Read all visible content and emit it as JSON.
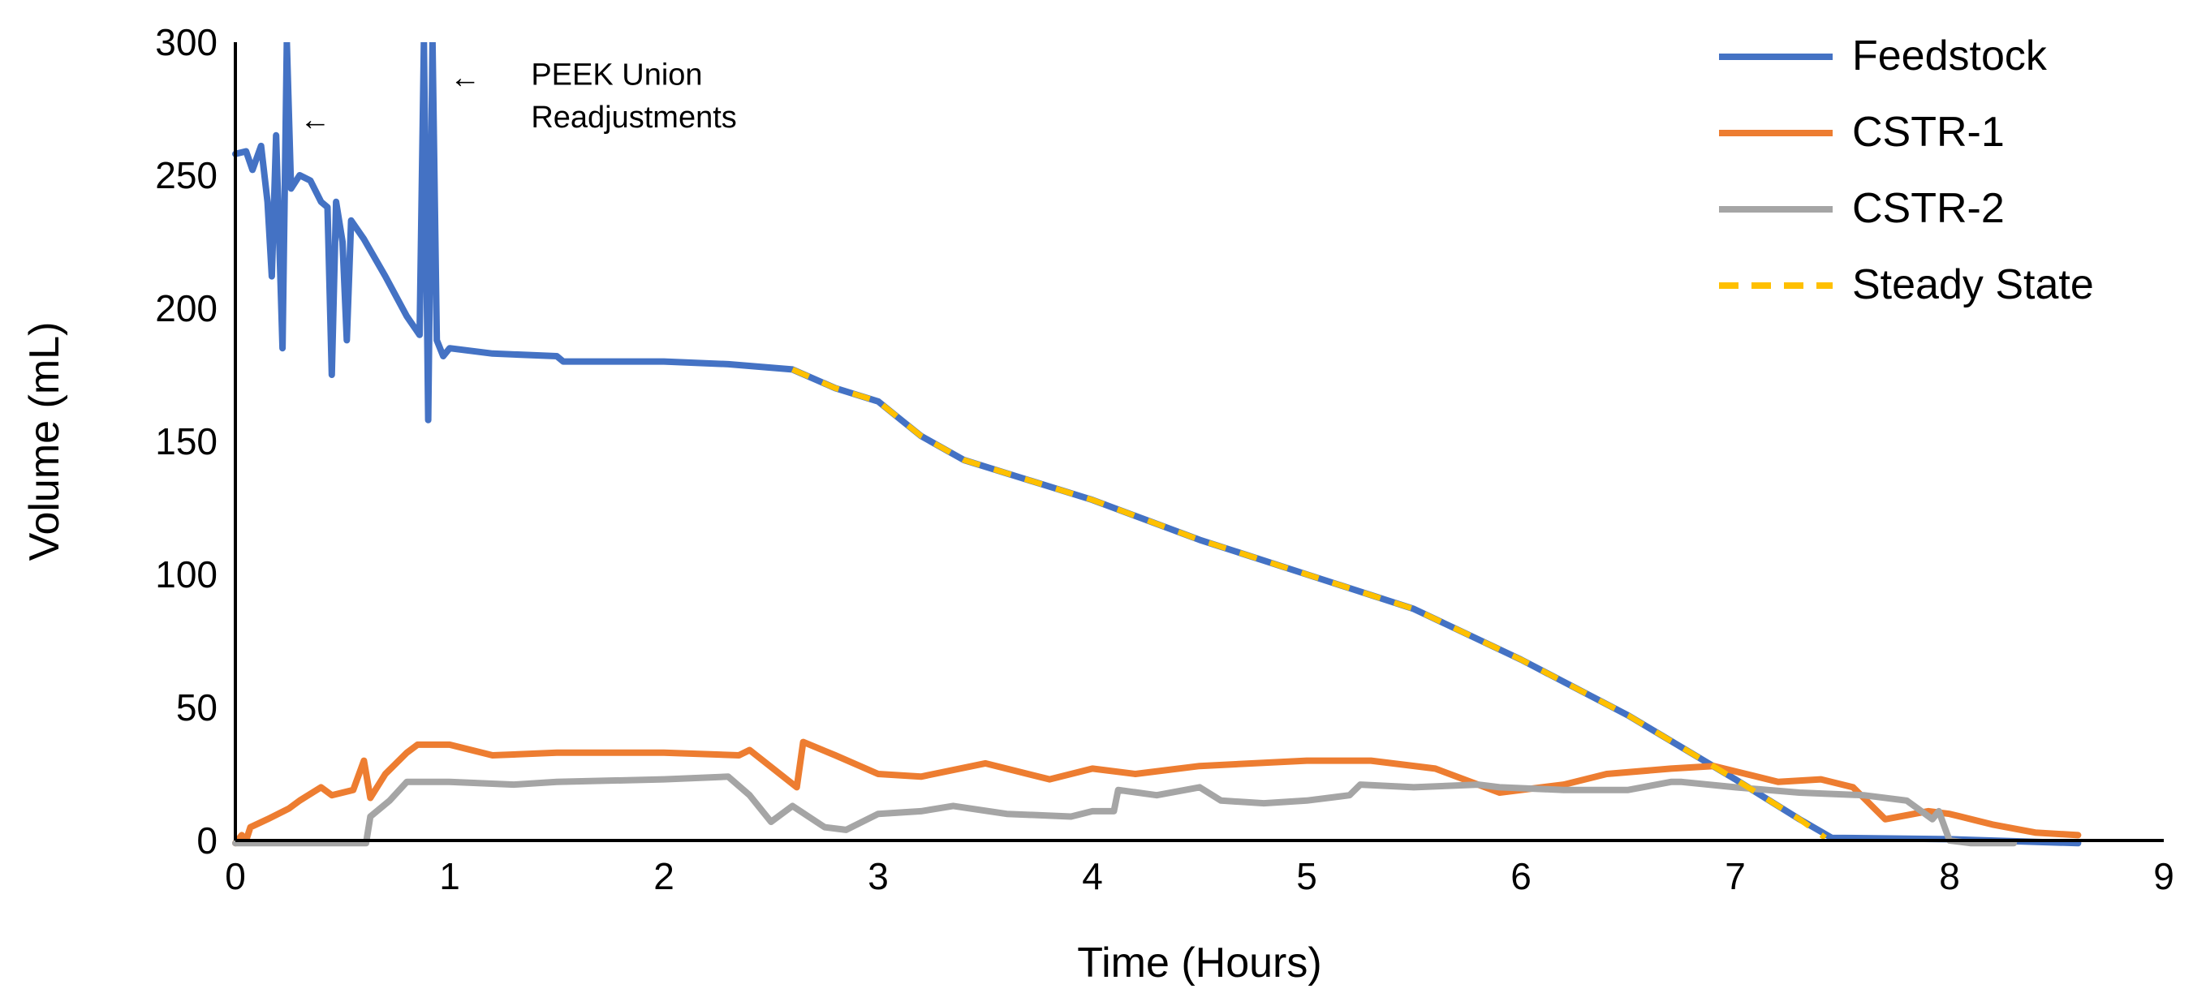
{
  "chart_data": {
    "type": "line",
    "title": "",
    "xlabel": "Time (Hours)",
    "ylabel": "Volume (mL)",
    "xlim": [
      0,
      9
    ],
    "ylim": [
      0,
      300
    ],
    "xticks": [
      0,
      1,
      2,
      3,
      4,
      5,
      6,
      7,
      8,
      9
    ],
    "yticks": [
      0,
      50,
      100,
      150,
      200,
      250,
      300
    ],
    "grid": false,
    "legend_position": "top-right",
    "series": [
      {
        "name": "Feedstock",
        "color": "#4472C4",
        "dash": "solid",
        "points": [
          [
            0,
            258
          ],
          [
            0.05,
            259
          ],
          [
            0.08,
            252
          ],
          [
            0.12,
            261
          ],
          [
            0.15,
            240
          ],
          [
            0.17,
            212
          ],
          [
            0.19,
            265
          ],
          [
            0.22,
            185
          ],
          [
            0.24,
            300
          ],
          [
            0.26,
            245
          ],
          [
            0.3,
            250
          ],
          [
            0.35,
            248
          ],
          [
            0.4,
            240
          ],
          [
            0.43,
            238
          ],
          [
            0.45,
            175
          ],
          [
            0.47,
            240
          ],
          [
            0.5,
            225
          ],
          [
            0.52,
            188
          ],
          [
            0.54,
            233
          ],
          [
            0.6,
            226
          ],
          [
            0.7,
            212
          ],
          [
            0.8,
            197
          ],
          [
            0.86,
            190
          ],
          [
            0.88,
            300
          ],
          [
            0.9,
            158
          ],
          [
            0.92,
            300
          ],
          [
            0.94,
            188
          ],
          [
            0.97,
            182
          ],
          [
            1.0,
            185
          ],
          [
            1.2,
            183
          ],
          [
            1.5,
            182
          ],
          [
            1.53,
            180
          ],
          [
            2.0,
            180
          ],
          [
            2.3,
            179
          ],
          [
            2.6,
            177
          ],
          [
            2.8,
            170
          ],
          [
            3.0,
            165
          ],
          [
            3.2,
            152
          ],
          [
            3.4,
            143
          ],
          [
            3.6,
            138
          ],
          [
            4.0,
            128
          ],
          [
            4.5,
            113
          ],
          [
            5.0,
            100
          ],
          [
            5.5,
            87
          ],
          [
            6.0,
            68
          ],
          [
            6.5,
            47
          ],
          [
            7.0,
            23
          ],
          [
            7.3,
            8
          ],
          [
            7.45,
            1
          ],
          [
            8.0,
            0.5
          ],
          [
            8.6,
            -1
          ]
        ]
      },
      {
        "name": "CSTR-1",
        "color": "#ED7D31",
        "dash": "solid",
        "points": [
          [
            0,
            -1
          ],
          [
            0.03,
            2
          ],
          [
            0.05,
            0
          ],
          [
            0.07,
            5
          ],
          [
            0.15,
            8
          ],
          [
            0.25,
            12
          ],
          [
            0.3,
            15
          ],
          [
            0.4,
            20
          ],
          [
            0.45,
            17
          ],
          [
            0.55,
            19
          ],
          [
            0.6,
            30
          ],
          [
            0.63,
            16
          ],
          [
            0.7,
            25
          ],
          [
            0.8,
            33
          ],
          [
            0.85,
            36
          ],
          [
            1.0,
            36
          ],
          [
            1.2,
            32
          ],
          [
            1.5,
            33
          ],
          [
            2.0,
            33
          ],
          [
            2.35,
            32
          ],
          [
            2.4,
            34
          ],
          [
            2.62,
            20
          ],
          [
            2.65,
            37
          ],
          [
            2.8,
            32
          ],
          [
            3.0,
            25
          ],
          [
            3.2,
            24
          ],
          [
            3.5,
            29
          ],
          [
            3.8,
            23
          ],
          [
            4.0,
            27
          ],
          [
            4.2,
            25
          ],
          [
            4.5,
            28
          ],
          [
            5.0,
            30
          ],
          [
            5.3,
            30
          ],
          [
            5.6,
            27
          ],
          [
            5.9,
            18
          ],
          [
            6.2,
            21
          ],
          [
            6.4,
            25
          ],
          [
            6.7,
            27
          ],
          [
            6.9,
            28
          ],
          [
            7.0,
            26
          ],
          [
            7.2,
            22
          ],
          [
            7.4,
            23
          ],
          [
            7.55,
            20
          ],
          [
            7.7,
            8
          ],
          [
            7.9,
            11
          ],
          [
            8.0,
            10
          ],
          [
            8.2,
            6
          ],
          [
            8.4,
            3
          ],
          [
            8.6,
            2
          ]
        ]
      },
      {
        "name": "CSTR-2",
        "color": "#A5A5A5",
        "dash": "solid",
        "points": [
          [
            0,
            -1
          ],
          [
            0.45,
            -1
          ],
          [
            0.61,
            -1
          ],
          [
            0.63,
            9
          ],
          [
            0.72,
            15
          ],
          [
            0.8,
            22
          ],
          [
            1.0,
            22
          ],
          [
            1.3,
            21
          ],
          [
            1.5,
            22
          ],
          [
            2.0,
            23
          ],
          [
            2.3,
            24
          ],
          [
            2.4,
            17
          ],
          [
            2.5,
            7
          ],
          [
            2.6,
            13
          ],
          [
            2.75,
            5
          ],
          [
            2.85,
            4
          ],
          [
            3.0,
            10
          ],
          [
            3.2,
            11
          ],
          [
            3.35,
            13
          ],
          [
            3.6,
            10
          ],
          [
            3.9,
            9
          ],
          [
            4.0,
            11
          ],
          [
            4.1,
            11
          ],
          [
            4.12,
            19
          ],
          [
            4.3,
            17
          ],
          [
            4.5,
            20
          ],
          [
            4.6,
            15
          ],
          [
            4.8,
            14
          ],
          [
            5.0,
            15
          ],
          [
            5.2,
            17
          ],
          [
            5.25,
            21
          ],
          [
            5.5,
            20
          ],
          [
            5.8,
            21
          ],
          [
            5.9,
            20
          ],
          [
            6.2,
            19
          ],
          [
            6.5,
            19
          ],
          [
            6.7,
            22
          ],
          [
            6.75,
            22
          ],
          [
            7.0,
            20
          ],
          [
            7.3,
            18
          ],
          [
            7.6,
            17
          ],
          [
            7.8,
            15
          ],
          [
            7.92,
            8
          ],
          [
            7.95,
            11
          ],
          [
            8.0,
            0
          ],
          [
            8.1,
            -1
          ],
          [
            8.3,
            -1
          ]
        ]
      },
      {
        "name": "Steady State",
        "color": "#FFC000",
        "dash": "dashed",
        "points": [
          [
            2.6,
            177
          ],
          [
            2.8,
            170
          ],
          [
            3.0,
            165
          ],
          [
            3.2,
            152
          ],
          [
            3.4,
            143
          ],
          [
            3.6,
            138
          ],
          [
            4.0,
            128
          ],
          [
            4.5,
            113
          ],
          [
            5.0,
            100
          ],
          [
            5.5,
            87
          ],
          [
            6.0,
            68
          ],
          [
            6.5,
            47
          ],
          [
            7.0,
            23
          ],
          [
            7.3,
            8
          ],
          [
            7.42,
            1
          ]
        ]
      }
    ],
    "annotations": [
      {
        "text": "←",
        "x": 0.3,
        "y": 267
      },
      {
        "text": "←",
        "x": 1.0,
        "y": 283
      },
      {
        "text": "PEEK Union",
        "x": 1.38,
        "y": 284
      },
      {
        "text": "Readjustments",
        "x": 1.38,
        "y": 268
      }
    ]
  }
}
